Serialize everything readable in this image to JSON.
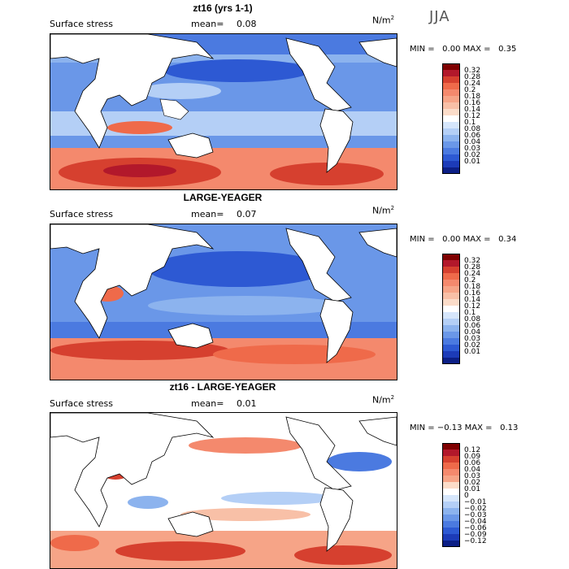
{
  "season": "JJA",
  "colors": {
    "pos_scale": [
      "#7f0000",
      "#b2182b",
      "#d6402f",
      "#ef6a4a",
      "#f4896d",
      "#f6a487",
      "#f8c0a7",
      "#fbdcc9",
      "#ffffff",
      "#d6e6fb",
      "#b4cff6",
      "#8cb3ee",
      "#6a97e8",
      "#4b7ae0",
      "#2d59d3",
      "#1c3bb8",
      "#0c1f86"
    ],
    "diff_scale": [
      "#7f0000",
      "#b2182b",
      "#d6402f",
      "#ef6a4a",
      "#f4896d",
      "#f6a487",
      "#fbdcc9",
      "#ffffff",
      "#d6e6fb",
      "#b4cff6",
      "#8cb3ee",
      "#6a97e8",
      "#4b7ae0",
      "#2d59d3",
      "#1c3bb8",
      "#0c1f86"
    ],
    "land": "#ffffff",
    "coast": "#000000"
  },
  "panels": [
    {
      "title": "zt16 (yrs 1-1)",
      "field_label": "Surface stress",
      "mean_label": "mean=",
      "mean_value": "0.08",
      "units": "N/m",
      "units_sup": "2",
      "min_label": "MIN =",
      "min_value": "0.00",
      "max_label": "MAX =",
      "max_value": "0.35",
      "colorbar_labels": [
        "0.32",
        "0.28",
        "0.24",
        "0.2",
        "0.18",
        "0.16",
        "0.14",
        "0.12",
        "0.1",
        "0.08",
        "0.06",
        "0.04",
        "0.03",
        "0.02",
        "0.01"
      ]
    },
    {
      "title": "LARGE-YEAGER",
      "field_label": "Surface stress",
      "mean_label": "mean=",
      "mean_value": "0.07",
      "units": "N/m",
      "units_sup": "2",
      "min_label": "MIN =",
      "min_value": "0.00",
      "max_label": "MAX =",
      "max_value": "0.34",
      "colorbar_labels": [
        "0.32",
        "0.28",
        "0.24",
        "0.2",
        "0.18",
        "0.16",
        "0.14",
        "0.12",
        "0.1",
        "0.08",
        "0.06",
        "0.04",
        "0.03",
        "0.02",
        "0.01"
      ]
    },
    {
      "title": "zt16 - LARGE-YEAGER",
      "field_label": "Surface stress",
      "mean_label": "mean=",
      "mean_value": "0.01",
      "units": "N/m",
      "units_sup": "2",
      "min_label": "MIN =",
      "min_value": "−0.13",
      "max_label": "MAX =",
      "max_value": "0.13",
      "colorbar_labels": [
        "0.12",
        "0.09",
        "0.06",
        "0.04",
        "0.03",
        "0.02",
        "0.01",
        "0",
        "−0.01",
        "−0.02",
        "−0.03",
        "−0.04",
        "−0.06",
        "−0.09",
        "−0.12"
      ]
    }
  ]
}
